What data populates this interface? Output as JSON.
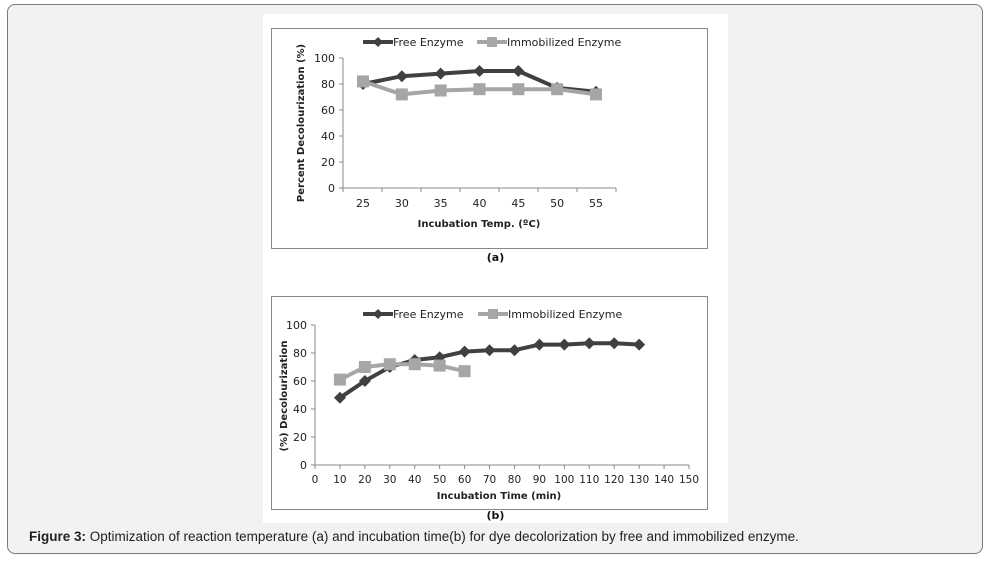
{
  "chart_data": [
    {
      "id": "a",
      "type": "line",
      "title": "",
      "panel_label": "(a)",
      "xlabel": "Incubation Temp. (ºC)",
      "ylabel": "Percent Decolourization (%)",
      "x": [
        25,
        30,
        35,
        40,
        45,
        50,
        55
      ],
      "xlim": [
        25,
        55
      ],
      "ylim": [
        0,
        100
      ],
      "yticks": [
        0,
        20,
        40,
        60,
        80,
        100
      ],
      "xticks": [
        25,
        30,
        35,
        40,
        45,
        50,
        55
      ],
      "grid": false,
      "legend": "top",
      "series": [
        {
          "name": "Free Enzyme",
          "marker": "diamond",
          "color": "#404040",
          "values": [
            80,
            86,
            88,
            90,
            90,
            77,
            74
          ]
        },
        {
          "name": "Immobilized Enzyme",
          "marker": "square",
          "color": "#a6a6a6",
          "values": [
            82,
            72,
            75,
            76,
            76,
            76,
            72
          ]
        }
      ]
    },
    {
      "id": "b",
      "type": "line",
      "title": "",
      "panel_label": "(b)",
      "xlabel": "Incubation Time (min)",
      "ylabel": "(%) Decolourization",
      "xlim": [
        0,
        150
      ],
      "ylim": [
        0,
        100
      ],
      "yticks": [
        0,
        20,
        40,
        60,
        80,
        100
      ],
      "xticks": [
        0,
        10,
        20,
        30,
        40,
        50,
        60,
        70,
        80,
        90,
        100,
        110,
        120,
        130,
        140,
        150
      ],
      "grid": false,
      "legend": "top",
      "series": [
        {
          "name": "Free Enzyme",
          "marker": "diamond",
          "color": "#404040",
          "x": [
            10,
            20,
            30,
            40,
            50,
            60,
            70,
            80,
            90,
            100,
            110,
            120,
            130
          ],
          "values": [
            48,
            60,
            70,
            75,
            77,
            81,
            82,
            82,
            86,
            86,
            87,
            87,
            86
          ]
        },
        {
          "name": "Immobilized Enzyme",
          "marker": "square",
          "color": "#a6a6a6",
          "x": [
            10,
            20,
            30,
            40,
            50,
            60
          ],
          "values": [
            61,
            70,
            72,
            72,
            71,
            67
          ]
        }
      ]
    }
  ],
  "caption": {
    "label": "Figure 3:",
    "text": " Optimization of reaction temperature (a) and incubation time(b) for dye decolorization by free and immobilized enzyme."
  }
}
